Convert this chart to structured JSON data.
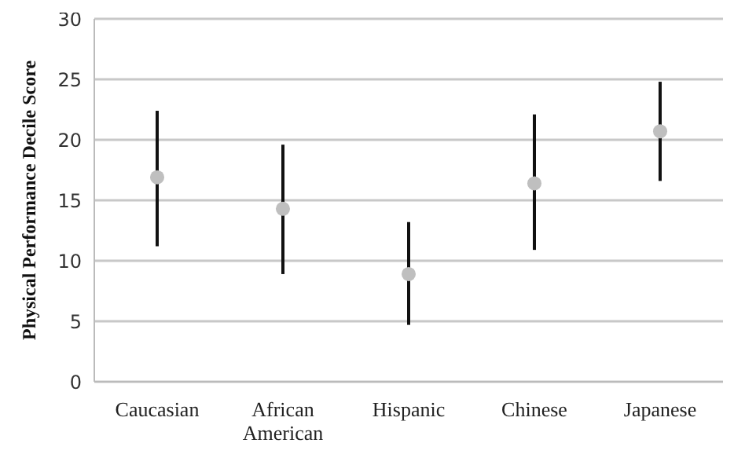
{
  "chart_data": {
    "type": "scatter",
    "ylabel": "Physical Performance Decile Score",
    "categories": [
      "Caucasian",
      "African American",
      "Hispanic",
      "Chinese",
      "Japanese"
    ],
    "values": [
      16.9,
      14.3,
      8.9,
      16.4,
      20.7
    ],
    "errors": [
      [
        11.2,
        22.4
      ],
      [
        8.9,
        19.6
      ],
      [
        4.7,
        13.2
      ],
      [
        10.9,
        22.1
      ],
      [
        16.6,
        24.8
      ]
    ],
    "color": "#bfbfbf",
    "marker": "circle",
    "ylim": [
      0,
      30
    ],
    "yticks": [
      0,
      5,
      10,
      15,
      20,
      25,
      30
    ],
    "grid": "y"
  }
}
